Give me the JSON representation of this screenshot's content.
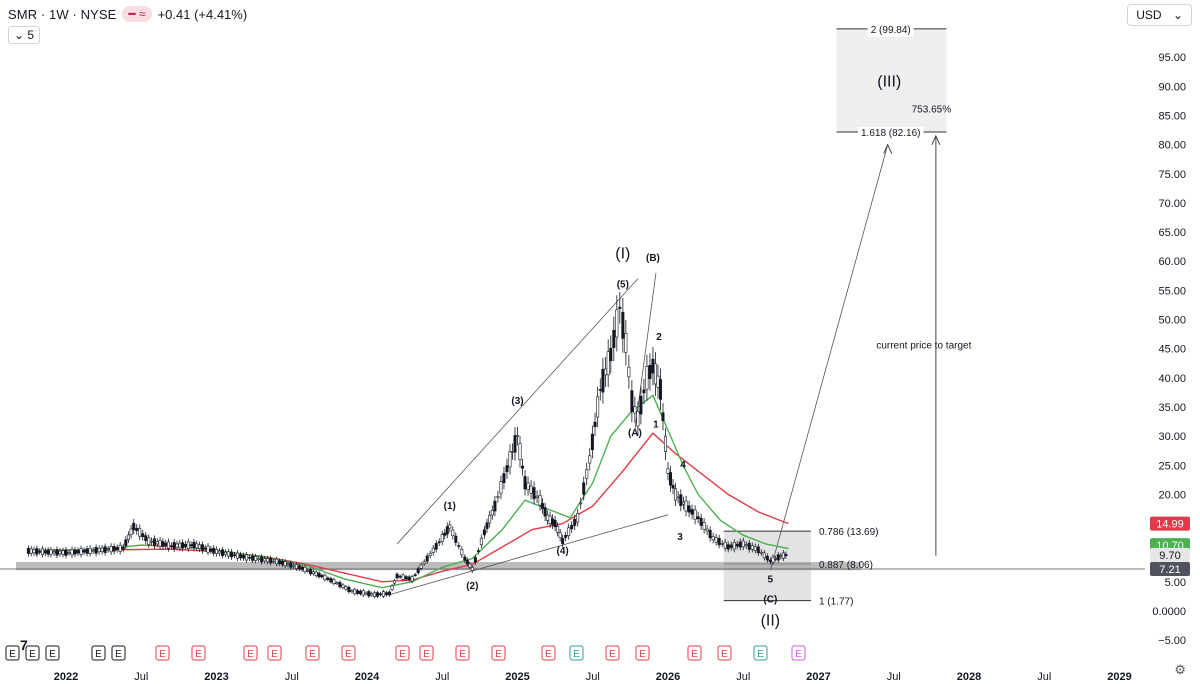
{
  "header": {
    "symbol": "SMR · 1W · NYSE",
    "indicator_icon": "wave-indicator-icon",
    "change": "+0.41 (+4.41%)",
    "interval": "5",
    "currency": "USD"
  },
  "chart_data": {
    "type": "candlestick",
    "title": "",
    "y_axis": {
      "min": -5,
      "max": 100,
      "position": "right",
      "ticks": [
        -5,
        0,
        5,
        10,
        15,
        20,
        25,
        30,
        35,
        40,
        45,
        50,
        55,
        60,
        65,
        70,
        75,
        80,
        85,
        90,
        95
      ],
      "tick_labels": [
        "−5.00",
        "0.0000",
        "5.00",
        "10.00",
        "15.00",
        "20.00",
        "25.00",
        "30.00",
        "35.00",
        "40.00",
        "45.00",
        "50.00",
        "55.00",
        "60.00",
        "65.00",
        "70.00",
        "75.00",
        "80.00",
        "85.00",
        "90.00",
        "95.00"
      ]
    },
    "x_axis": {
      "labels": [
        "2022",
        "Jul",
        "2023",
        "Jul",
        "2024",
        "Jul",
        "2025",
        "Jul",
        "2026",
        "Jul",
        "2027",
        "Jul",
        "2028",
        "Jul",
        "2029"
      ],
      "bold": [
        "2022",
        "2023",
        "2024",
        "2025",
        "2026",
        "2027",
        "2028",
        "2029"
      ]
    },
    "price_badges": [
      {
        "value": "14.99",
        "color": "#e03b4a"
      },
      {
        "value": "10.70",
        "color": "#4caf50"
      },
      {
        "value": "9.70",
        "color": "#e6e6e6"
      },
      {
        "value": "7.21",
        "color": "#50535e"
      }
    ],
    "price_series": [
      [
        2021.75,
        10.3
      ],
      [
        2021.9,
        10.1
      ],
      [
        2022.0,
        10.0
      ],
      [
        2022.2,
        10.4
      ],
      [
        2022.38,
        10.8
      ],
      [
        2022.45,
        14.5
      ],
      [
        2022.55,
        12.0
      ],
      [
        2022.7,
        11.2
      ],
      [
        2022.85,
        11.3
      ],
      [
        2023.0,
        10.2
      ],
      [
        2023.2,
        9.2
      ],
      [
        2023.4,
        8.5
      ],
      [
        2023.55,
        7.5
      ],
      [
        2023.7,
        6.0
      ],
      [
        2023.8,
        4.8
      ],
      [
        2023.9,
        3.4
      ],
      [
        2024.05,
        2.8
      ],
      [
        2024.15,
        3.0
      ],
      [
        2024.2,
        6.0
      ],
      [
        2024.3,
        5.5
      ],
      [
        2024.4,
        9.0
      ],
      [
        2024.5,
        12.5
      ],
      [
        2024.55,
        14.5
      ],
      [
        2024.65,
        9.0
      ],
      [
        2024.7,
        7.2
      ],
      [
        2024.78,
        13.5
      ],
      [
        2024.85,
        18.0
      ],
      [
        2024.95,
        26.0
      ],
      [
        2025.0,
        30.0
      ],
      [
        2025.05,
        22.0
      ],
      [
        2025.15,
        19.0
      ],
      [
        2025.2,
        16.0
      ],
      [
        2025.25,
        15.0
      ],
      [
        2025.3,
        12.0
      ],
      [
        2025.4,
        16.0
      ],
      [
        2025.48,
        26.0
      ],
      [
        2025.55,
        38.0
      ],
      [
        2025.62,
        44.0
      ],
      [
        2025.68,
        52.0
      ],
      [
        2025.72,
        46.0
      ],
      [
        2025.76,
        36.0
      ],
      [
        2025.8,
        33.0
      ],
      [
        2025.86,
        40.0
      ],
      [
        2025.9,
        42.0
      ],
      [
        2025.95,
        38.0
      ],
      [
        2026.0,
        24.0
      ],
      [
        2026.05,
        20.0
      ],
      [
        2026.12,
        18.0
      ],
      [
        2026.2,
        16.0
      ],
      [
        2026.3,
        12.5
      ],
      [
        2026.4,
        11.0
      ],
      [
        2026.5,
        11.5
      ],
      [
        2026.6,
        10.5
      ],
      [
        2026.68,
        8.6
      ],
      [
        2026.75,
        9.4
      ],
      [
        2026.8,
        9.7
      ]
    ],
    "ma_green": [
      [
        2021.75,
        10.4
      ],
      [
        2022.2,
        10.5
      ],
      [
        2022.5,
        11.3
      ],
      [
        2022.8,
        11.0
      ],
      [
        2023.0,
        10.4
      ],
      [
        2023.3,
        9.3
      ],
      [
        2023.6,
        7.8
      ],
      [
        2023.85,
        5.5
      ],
      [
        2024.1,
        4.0
      ],
      [
        2024.3,
        5.0
      ],
      [
        2024.5,
        7.5
      ],
      [
        2024.7,
        9.0
      ],
      [
        2024.9,
        14.0
      ],
      [
        2025.05,
        19.0
      ],
      [
        2025.2,
        17.5
      ],
      [
        2025.35,
        16.0
      ],
      [
        2025.5,
        22.0
      ],
      [
        2025.62,
        30.0
      ],
      [
        2025.75,
        34.0
      ],
      [
        2025.9,
        37.0
      ],
      [
        2026.0,
        31.0
      ],
      [
        2026.1,
        25.0
      ],
      [
        2026.2,
        20.0
      ],
      [
        2026.35,
        15.5
      ],
      [
        2026.5,
        13.0
      ],
      [
        2026.65,
        11.5
      ],
      [
        2026.8,
        10.7
      ]
    ],
    "ma_red": [
      [
        2021.75,
        10.4
      ],
      [
        2022.3,
        10.5
      ],
      [
        2022.7,
        10.6
      ],
      [
        2023.0,
        10.2
      ],
      [
        2023.3,
        9.4
      ],
      [
        2023.6,
        8.0
      ],
      [
        2023.85,
        6.5
      ],
      [
        2024.1,
        5.0
      ],
      [
        2024.3,
        5.3
      ],
      [
        2024.5,
        6.8
      ],
      [
        2024.7,
        8.0
      ],
      [
        2024.9,
        11.0
      ],
      [
        2025.1,
        14.0
      ],
      [
        2025.3,
        15.0
      ],
      [
        2025.5,
        18.0
      ],
      [
        2025.7,
        24.0
      ],
      [
        2025.9,
        30.5
      ],
      [
        2026.05,
        27.0
      ],
      [
        2026.2,
        24.0
      ],
      [
        2026.4,
        20.0
      ],
      [
        2026.6,
        17.0
      ],
      [
        2026.8,
        14.99
      ]
    ],
    "wave_labels": [
      {
        "text": "(I)",
        "x": 2025.7,
        "y": 60.5,
        "size": "lg"
      },
      {
        "text": "(5)",
        "x": 2025.7,
        "y": 55.5
      },
      {
        "text": "(B)",
        "x": 2025.9,
        "y": 60.0
      },
      {
        "text": "2",
        "x": 2025.94,
        "y": 46.5
      },
      {
        "text": "(3)",
        "x": 2025.0,
        "y": 35.5
      },
      {
        "text": "(A)",
        "x": 2025.78,
        "y": 30.0
      },
      {
        "text": "1",
        "x": 2025.92,
        "y": 31.5
      },
      {
        "text": "(1)",
        "x": 2024.55,
        "y": 17.5
      },
      {
        "text": "4",
        "x": 2026.1,
        "y": 24.5
      },
      {
        "text": "3",
        "x": 2026.08,
        "y": 12.2
      },
      {
        "text": "(4)",
        "x": 2025.3,
        "y": 9.8
      },
      {
        "text": "(2)",
        "x": 2024.7,
        "y": 3.8
      },
      {
        "text": "5",
        "x": 2026.68,
        "y": 4.9
      },
      {
        "text": "(C)",
        "x": 2026.68,
        "y": 1.5
      },
      {
        "text": "(II)",
        "x": 2026.68,
        "y": -2.5,
        "size": "lg"
      },
      {
        "text": "(III)",
        "x": 2027.47,
        "y": 90.0,
        "size": "lg"
      }
    ],
    "fib_levels": [
      {
        "label": "0.786 (13.69)",
        "value": 13.69
      },
      {
        "label": "0.887 (8.06)",
        "value": 8.06
      },
      {
        "label": "1 (1.77)",
        "value": 1.77
      },
      {
        "label": "1.618 (82.16)",
        "value": 82.16
      },
      {
        "label": "2 (99.84)",
        "value": 99.84
      }
    ],
    "annotations": [
      {
        "text": "753.65%",
        "x": 2027.75,
        "y": 85.5
      },
      {
        "text": "current price to target",
        "x": 2027.7,
        "y": 45.0
      }
    ],
    "support_zone": [
      7.0,
      8.4
    ],
    "current_price_line": 7.21,
    "event_markers": [
      "E",
      "E",
      "E",
      "E",
      "E",
      "E",
      "E",
      "E",
      "E",
      "E",
      "E",
      "E",
      "E",
      "E",
      "E",
      "E",
      "E",
      "E",
      "E",
      "E",
      "E",
      "E",
      "E",
      "E",
      "E"
    ]
  }
}
